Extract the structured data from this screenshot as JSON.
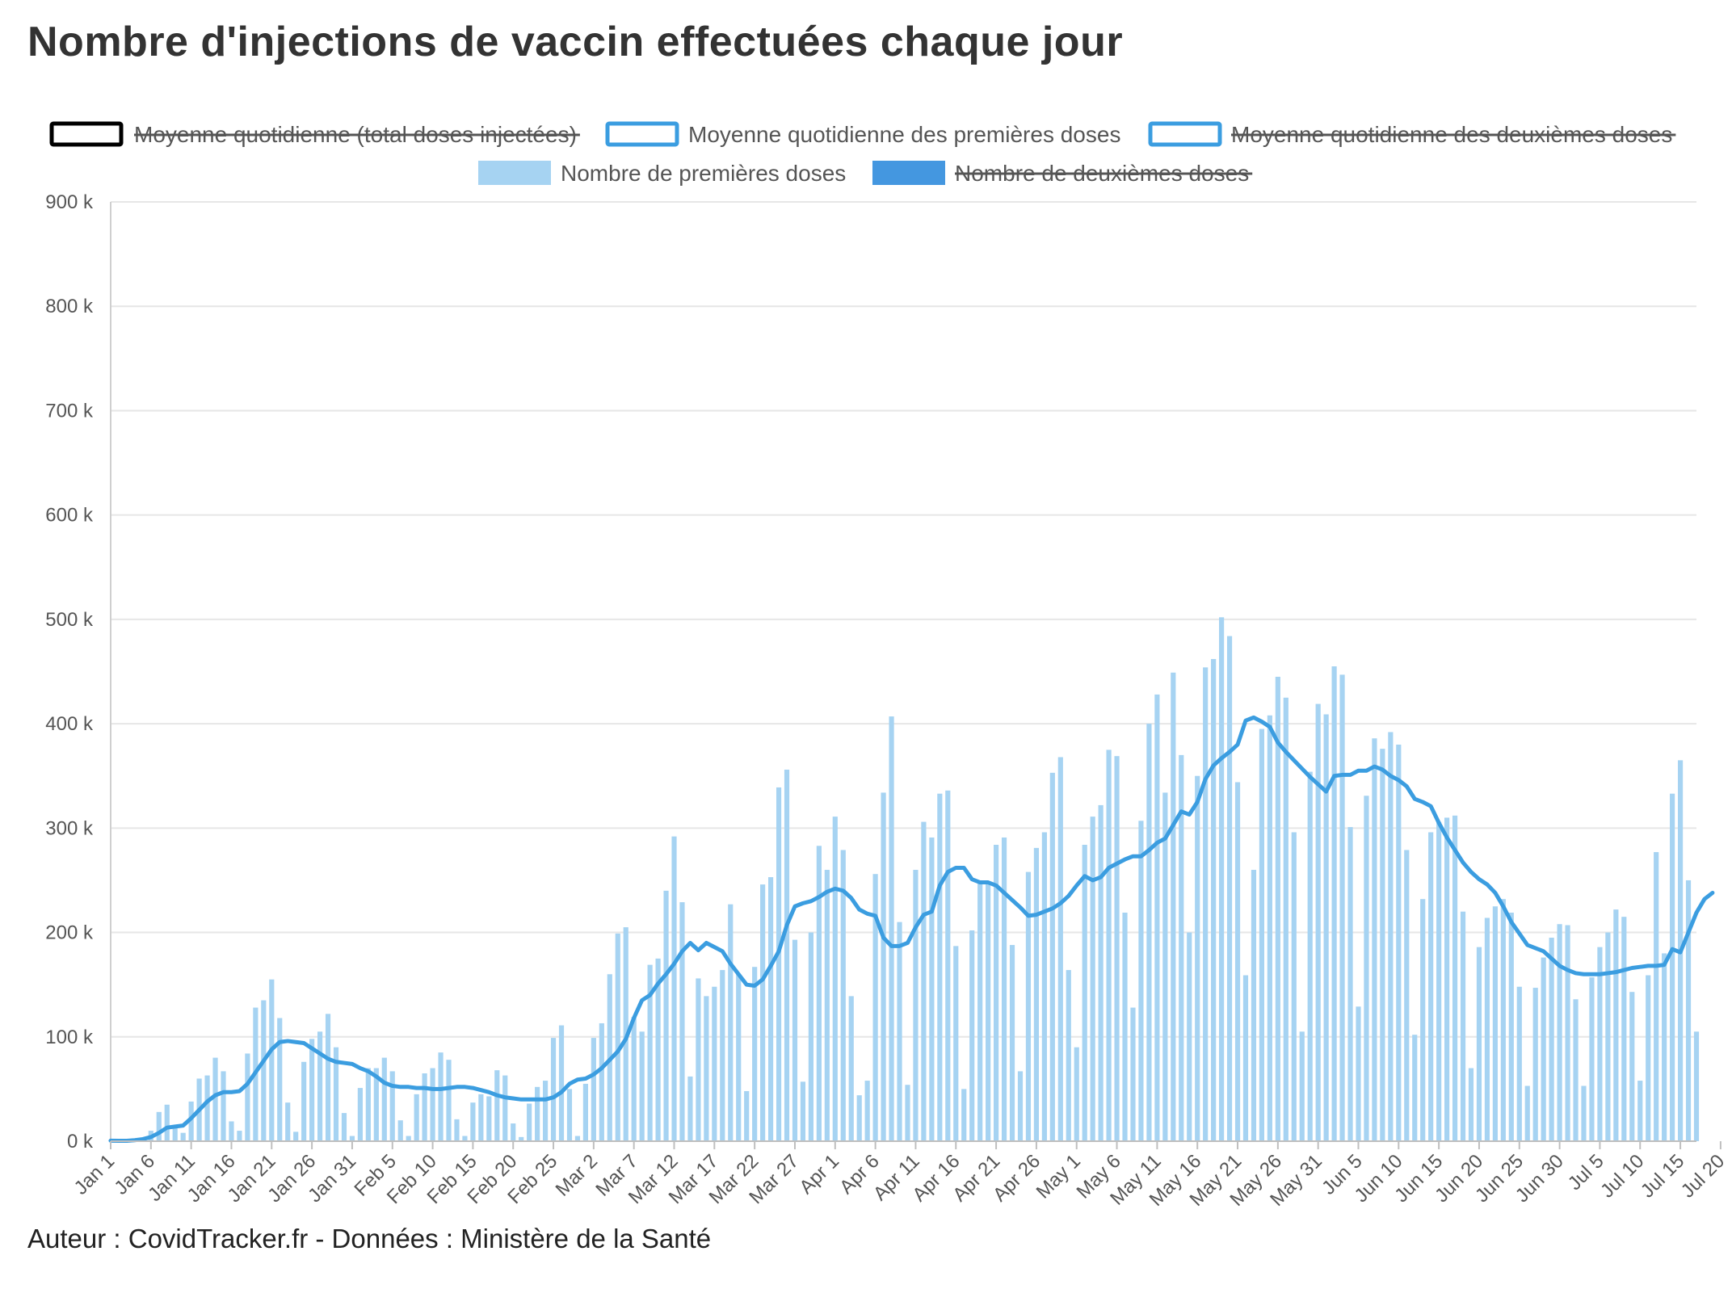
{
  "title": "Nombre d'injections de vaccin effectuées chaque jour",
  "credit": "Auteur : CovidTracker.fr - Données : Ministère de la Santé",
  "colors": {
    "bars": "#a6d3f2",
    "line": "#3b9de0",
    "second_doses": "#4497e0",
    "grid": "#e6e6e6",
    "text": "#555555"
  },
  "chart_data": {
    "type": "bar",
    "title": "Nombre d'injections de vaccin effectuées chaque jour",
    "xlabel": "",
    "ylabel": "",
    "ylim": [
      0,
      900000
    ],
    "yticks": [
      "0 k",
      "100 k",
      "200 k",
      "300 k",
      "400 k",
      "500 k",
      "600 k",
      "700 k",
      "800 k",
      "900 k"
    ],
    "xticks": [
      "Jan 1",
      "Jan 6",
      "Jan 11",
      "Jan 16",
      "Jan 21",
      "Jan 26",
      "Jan 31",
      "Feb 5",
      "Feb 10",
      "Feb 15",
      "Feb 20",
      "Feb 25",
      "Mar 2",
      "Mar 7",
      "Mar 12",
      "Mar 17",
      "Mar 22",
      "Mar 27",
      "Apr 1",
      "Apr 6",
      "Apr 11",
      "Apr 16",
      "Apr 21",
      "Apr 26",
      "May 1",
      "May 6",
      "May 11",
      "May 16",
      "May 21",
      "May 26",
      "May 31",
      "Jun 5",
      "Jun 10",
      "Jun 15",
      "Jun 20",
      "Jun 25",
      "Jun 30",
      "Jul 5",
      "Jul 10",
      "Jul 15",
      "Jul 20"
    ],
    "legend": [
      {
        "label": "Moyenne quotidienne (total doses injectées)",
        "kind": "line",
        "color": "#000000",
        "hidden": true
      },
      {
        "label": "Moyenne quotidienne des premières doses",
        "kind": "line",
        "color": "#3b9de0",
        "hidden": false
      },
      {
        "label": "Moyenne quotidienne des deuxièmes doses",
        "kind": "line",
        "color": "#3b9de0",
        "hidden": true
      },
      {
        "label": "Nombre de premières doses",
        "kind": "bar",
        "color": "#a6d3f2",
        "hidden": false
      },
      {
        "label": "Nombre de deuxièmes doses",
        "kind": "bar",
        "color": "#4497e0",
        "hidden": true
      }
    ],
    "series": [
      {
        "name": "Nombre de premières doses",
        "type": "bar",
        "unit": "k",
        "start_date": "Jan 1",
        "values": [
          0.4,
          0.2,
          0.3,
          0.8,
          3,
          10,
          28,
          35,
          15,
          8,
          38,
          60,
          63,
          80,
          67,
          19,
          10,
          84,
          128,
          135,
          155,
          118,
          37,
          9,
          76,
          98,
          105,
          122,
          90,
          27,
          5,
          51,
          70,
          70,
          80,
          67,
          20,
          5,
          45,
          65,
          70,
          85,
          78,
          21,
          5,
          37,
          45,
          43,
          68,
          63,
          17,
          4,
          36,
          52,
          58,
          99,
          111,
          50,
          5,
          55,
          99,
          113,
          160,
          199,
          205,
          119,
          105,
          169,
          175,
          240,
          292,
          229,
          62,
          156,
          139,
          148,
          164,
          227,
          160,
          48,
          167,
          246,
          253,
          339,
          356,
          193,
          57,
          200,
          283,
          260,
          311,
          279,
          139,
          44,
          58,
          256,
          334,
          407,
          210,
          54,
          260,
          306,
          291,
          333,
          336,
          187,
          50,
          202,
          250,
          249,
          284,
          291,
          188,
          67,
          258,
          281,
          296,
          353,
          368,
          164,
          90,
          284,
          311,
          322,
          375,
          369,
          219,
          128,
          307,
          400,
          428,
          334,
          449,
          370,
          200,
          350,
          454,
          462,
          502,
          484,
          344,
          159,
          260,
          395,
          408,
          445,
          425,
          296,
          105,
          354,
          419,
          409,
          455,
          447,
          301,
          129,
          331,
          386,
          376,
          392,
          380,
          279,
          102,
          232,
          296,
          306,
          310,
          312,
          220,
          70,
          186,
          214,
          225,
          232,
          219,
          148,
          53,
          147,
          176,
          195,
          208,
          207,
          136,
          53,
          157,
          186,
          200,
          222,
          215,
          143,
          58,
          159,
          277,
          180,
          333,
          365,
          250,
          105
        ]
      },
      {
        "name": "Moyenne quotidienne des premières doses",
        "type": "line",
        "unit": "k",
        "start_date": "Jan 1",
        "values": [
          0.5,
          0.4,
          0.4,
          1,
          2,
          4,
          8,
          13,
          14,
          15,
          22,
          30,
          38,
          44,
          47,
          47,
          48,
          55,
          66,
          77,
          88,
          95,
          96,
          95,
          94,
          89,
          84,
          79,
          76,
          75,
          74,
          70,
          67,
          62,
          56,
          53,
          52,
          52,
          51,
          51,
          50,
          50,
          51,
          52,
          52,
          51,
          49,
          47,
          44,
          42,
          41,
          40,
          40,
          40,
          40,
          42,
          47,
          55,
          59,
          60,
          64,
          70,
          78,
          86,
          98,
          118,
          135,
          140,
          151,
          160,
          170,
          182,
          190,
          183,
          190,
          186,
          182,
          170,
          160,
          150,
          149,
          155,
          168,
          182,
          207,
          225,
          228,
          230,
          234,
          239,
          242,
          240,
          233,
          222,
          218,
          216,
          195,
          187,
          187,
          190,
          205,
          217,
          220,
          245,
          258,
          262,
          262,
          251,
          248,
          248,
          245,
          238,
          231,
          224,
          216,
          217,
          220,
          223,
          228,
          235,
          245,
          254,
          250,
          253,
          262,
          266,
          270,
          273,
          273,
          279,
          286,
          290,
          303,
          316,
          313,
          325,
          347,
          360,
          367,
          373,
          380,
          403,
          406,
          402,
          397,
          382,
          373,
          365,
          357,
          349,
          342,
          335,
          350,
          351,
          351,
          355,
          355,
          359,
          356,
          350,
          346,
          340,
          328,
          325,
          321,
          305,
          291,
          279,
          267,
          258,
          251,
          246,
          238,
          225,
          210,
          199,
          188,
          185,
          182,
          175,
          168,
          164,
          161,
          160,
          160,
          160,
          161,
          162,
          164,
          166,
          167,
          168,
          168,
          169,
          184,
          181,
          200,
          219,
          232,
          238
        ]
      },
      {
        "name": "Nombre de deuxièmes doses",
        "type": "bar",
        "unit": "k",
        "hidden": true,
        "values": []
      },
      {
        "name": "Moyenne quotidienne (total doses injectées)",
        "type": "line",
        "unit": "k",
        "hidden": true,
        "values": []
      },
      {
        "name": "Moyenne quotidienne des deuxièmes doses",
        "type": "line",
        "unit": "k",
        "hidden": true,
        "values": []
      }
    ]
  }
}
